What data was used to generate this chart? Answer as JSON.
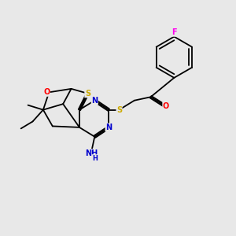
{
  "background_color": "#e8e8e8",
  "fig_width": 3.0,
  "fig_height": 3.0,
  "dpi": 100,
  "atom_colors": {
    "C": "#000000",
    "N": "#0000cd",
    "O": "#ff0000",
    "S": "#ccaa00",
    "F": "#ff00ee",
    "H": "#0000cd"
  },
  "bond_color": "#000000",
  "bond_width": 1.3,
  "font_size": 7.0,
  "xlim": [
    0,
    10
  ],
  "ylim": [
    0,
    10
  ]
}
